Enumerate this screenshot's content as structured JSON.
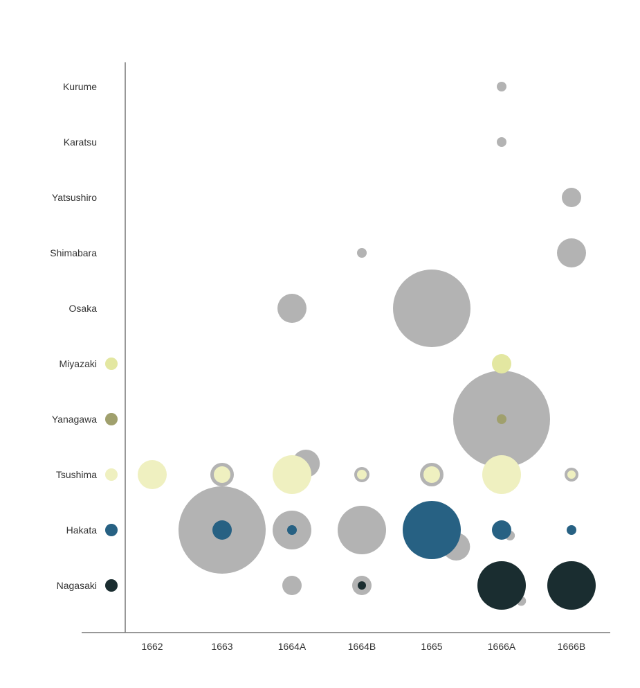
{
  "chart_data": {
    "type": "bubble",
    "title": "",
    "xlabel": "",
    "ylabel": "",
    "categories_x": [
      "1662",
      "1663",
      "1664A",
      "1664B",
      "1665",
      "1666A",
      "1666B"
    ],
    "categories_y": [
      "Kurume",
      "Karatsu",
      "Yatsushiro",
      "Shimabara",
      "Osaka",
      "Miyazaki",
      "Yanagawa",
      "Tsushima",
      "Hakata",
      "Nagasaki"
    ],
    "colors": {
      "other": "#b3b3b3",
      "Miyazaki": "#e3e7a1",
      "Yanagawa": "#a0a06d",
      "Tsushima": "#eff0c0",
      "Hakata": "#276183",
      "Nagasaki": "#1a2d30"
    },
    "legend": [
      {
        "city": "Miyazaki",
        "color": "#e3e7a1"
      },
      {
        "city": "Yanagawa",
        "color": "#a0a06d"
      },
      {
        "city": "Tsushima",
        "color": "#eff0c0"
      },
      {
        "city": "Hakata",
        "color": "#276183"
      },
      {
        "city": "Nagasaki",
        "color": "#1a2d30"
      }
    ],
    "bubbles": [
      {
        "x": "1666A",
        "y": "Kurume",
        "size": 7,
        "kind": "other",
        "order": 1
      },
      {
        "x": "1666A",
        "y": "Karatsu",
        "size": 7,
        "kind": "other",
        "order": 1
      },
      {
        "x": "1666B",
        "y": "Yatsushiro",
        "size": 14,
        "kind": "other",
        "order": 1
      },
      {
        "x": "1664B",
        "y": "Shimabara",
        "size": 7,
        "kind": "other",
        "order": 1
      },
      {
        "x": "1666B",
        "y": "Shimabara",
        "size": 21,
        "kind": "other",
        "order": 1
      },
      {
        "x": "1664A",
        "y": "Osaka",
        "size": 21,
        "kind": "other",
        "order": 1
      },
      {
        "x": "1665",
        "y": "Osaka",
        "size": 56,
        "kind": "other",
        "order": 1
      },
      {
        "x": "1666A",
        "y": "Miyazaki",
        "size": 14,
        "kind": "Miyazaki",
        "order": 2
      },
      {
        "x": "1666A",
        "y": "Yanagawa",
        "size": 70,
        "kind": "other",
        "order": 1
      },
      {
        "x": "1666A",
        "y": "Yanagawa",
        "size": 7,
        "kind": "Yanagawa",
        "order": 3
      },
      {
        "x": "1662",
        "y": "Tsushima",
        "size": 21,
        "kind": "Tsushima",
        "order": 2
      },
      {
        "x": "1663",
        "y": "Tsushima",
        "size": 17,
        "kind": "other",
        "order": 1
      },
      {
        "x": "1663",
        "y": "Tsushima",
        "size": 12,
        "kind": "Tsushima",
        "order": 2
      },
      {
        "x": "1664A",
        "y": "Tsushima",
        "size": 20,
        "kind": "other",
        "order": 1,
        "offset": 0.2,
        "offsetY": -0.2
      },
      {
        "x": "1664A",
        "y": "Tsushima",
        "size": 28,
        "kind": "Tsushima",
        "order": 2
      },
      {
        "x": "1664B",
        "y": "Tsushima",
        "size": 11,
        "kind": "other",
        "order": 1
      },
      {
        "x": "1664B",
        "y": "Tsushima",
        "size": 7,
        "kind": "Tsushima",
        "order": 2
      },
      {
        "x": "1665",
        "y": "Tsushima",
        "size": 17,
        "kind": "other",
        "order": 1
      },
      {
        "x": "1665",
        "y": "Tsushima",
        "size": 12,
        "kind": "Tsushima",
        "order": 2
      },
      {
        "x": "1666A",
        "y": "Tsushima",
        "size": 28,
        "kind": "Tsushima",
        "order": 2
      },
      {
        "x": "1666B",
        "y": "Tsushima",
        "size": 10,
        "kind": "other",
        "order": 1
      },
      {
        "x": "1666B",
        "y": "Tsushima",
        "size": 6,
        "kind": "Tsushima",
        "order": 2
      },
      {
        "x": "1663",
        "y": "Hakata",
        "size": 63,
        "kind": "other",
        "order": 1
      },
      {
        "x": "1663",
        "y": "Hakata",
        "size": 14,
        "kind": "Hakata",
        "order": 2
      },
      {
        "x": "1664A",
        "y": "Hakata",
        "size": 28,
        "kind": "other",
        "order": 1
      },
      {
        "x": "1664A",
        "y": "Hakata",
        "size": 7,
        "kind": "Hakata",
        "order": 2
      },
      {
        "x": "1664B",
        "y": "Hakata",
        "size": 35,
        "kind": "other",
        "order": 1
      },
      {
        "x": "1665",
        "y": "Hakata",
        "size": 20,
        "kind": "other",
        "order": 1,
        "offset": 0.35,
        "offsetY": 0.3
      },
      {
        "x": "1665",
        "y": "Hakata",
        "size": 42,
        "kind": "Hakata",
        "order": 2
      },
      {
        "x": "1666A",
        "y": "Hakata",
        "size": 7,
        "kind": "other",
        "order": 1,
        "offset": 0.12,
        "offsetY": 0.1
      },
      {
        "x": "1666A",
        "y": "Hakata",
        "size": 14,
        "kind": "Hakata",
        "order": 2
      },
      {
        "x": "1666B",
        "y": "Hakata",
        "size": 7,
        "kind": "Hakata",
        "order": 2
      },
      {
        "x": "1664A",
        "y": "Nagasaki",
        "size": 14,
        "kind": "other",
        "order": 1
      },
      {
        "x": "1664B",
        "y": "Nagasaki",
        "size": 14,
        "kind": "other",
        "order": 1
      },
      {
        "x": "1664B",
        "y": "Nagasaki",
        "size": 6,
        "kind": "Nagasaki",
        "order": 2
      },
      {
        "x": "1666A",
        "y": "Nagasaki",
        "size": 7,
        "kind": "other",
        "order": 1,
        "offset": 0.28,
        "offsetY": 0.28
      },
      {
        "x": "1666A",
        "y": "Nagasaki",
        "size": 35,
        "kind": "Nagasaki",
        "order": 2
      },
      {
        "x": "1666B",
        "y": "Nagasaki",
        "size": 35,
        "kind": "Nagasaki",
        "order": 2
      }
    ]
  }
}
